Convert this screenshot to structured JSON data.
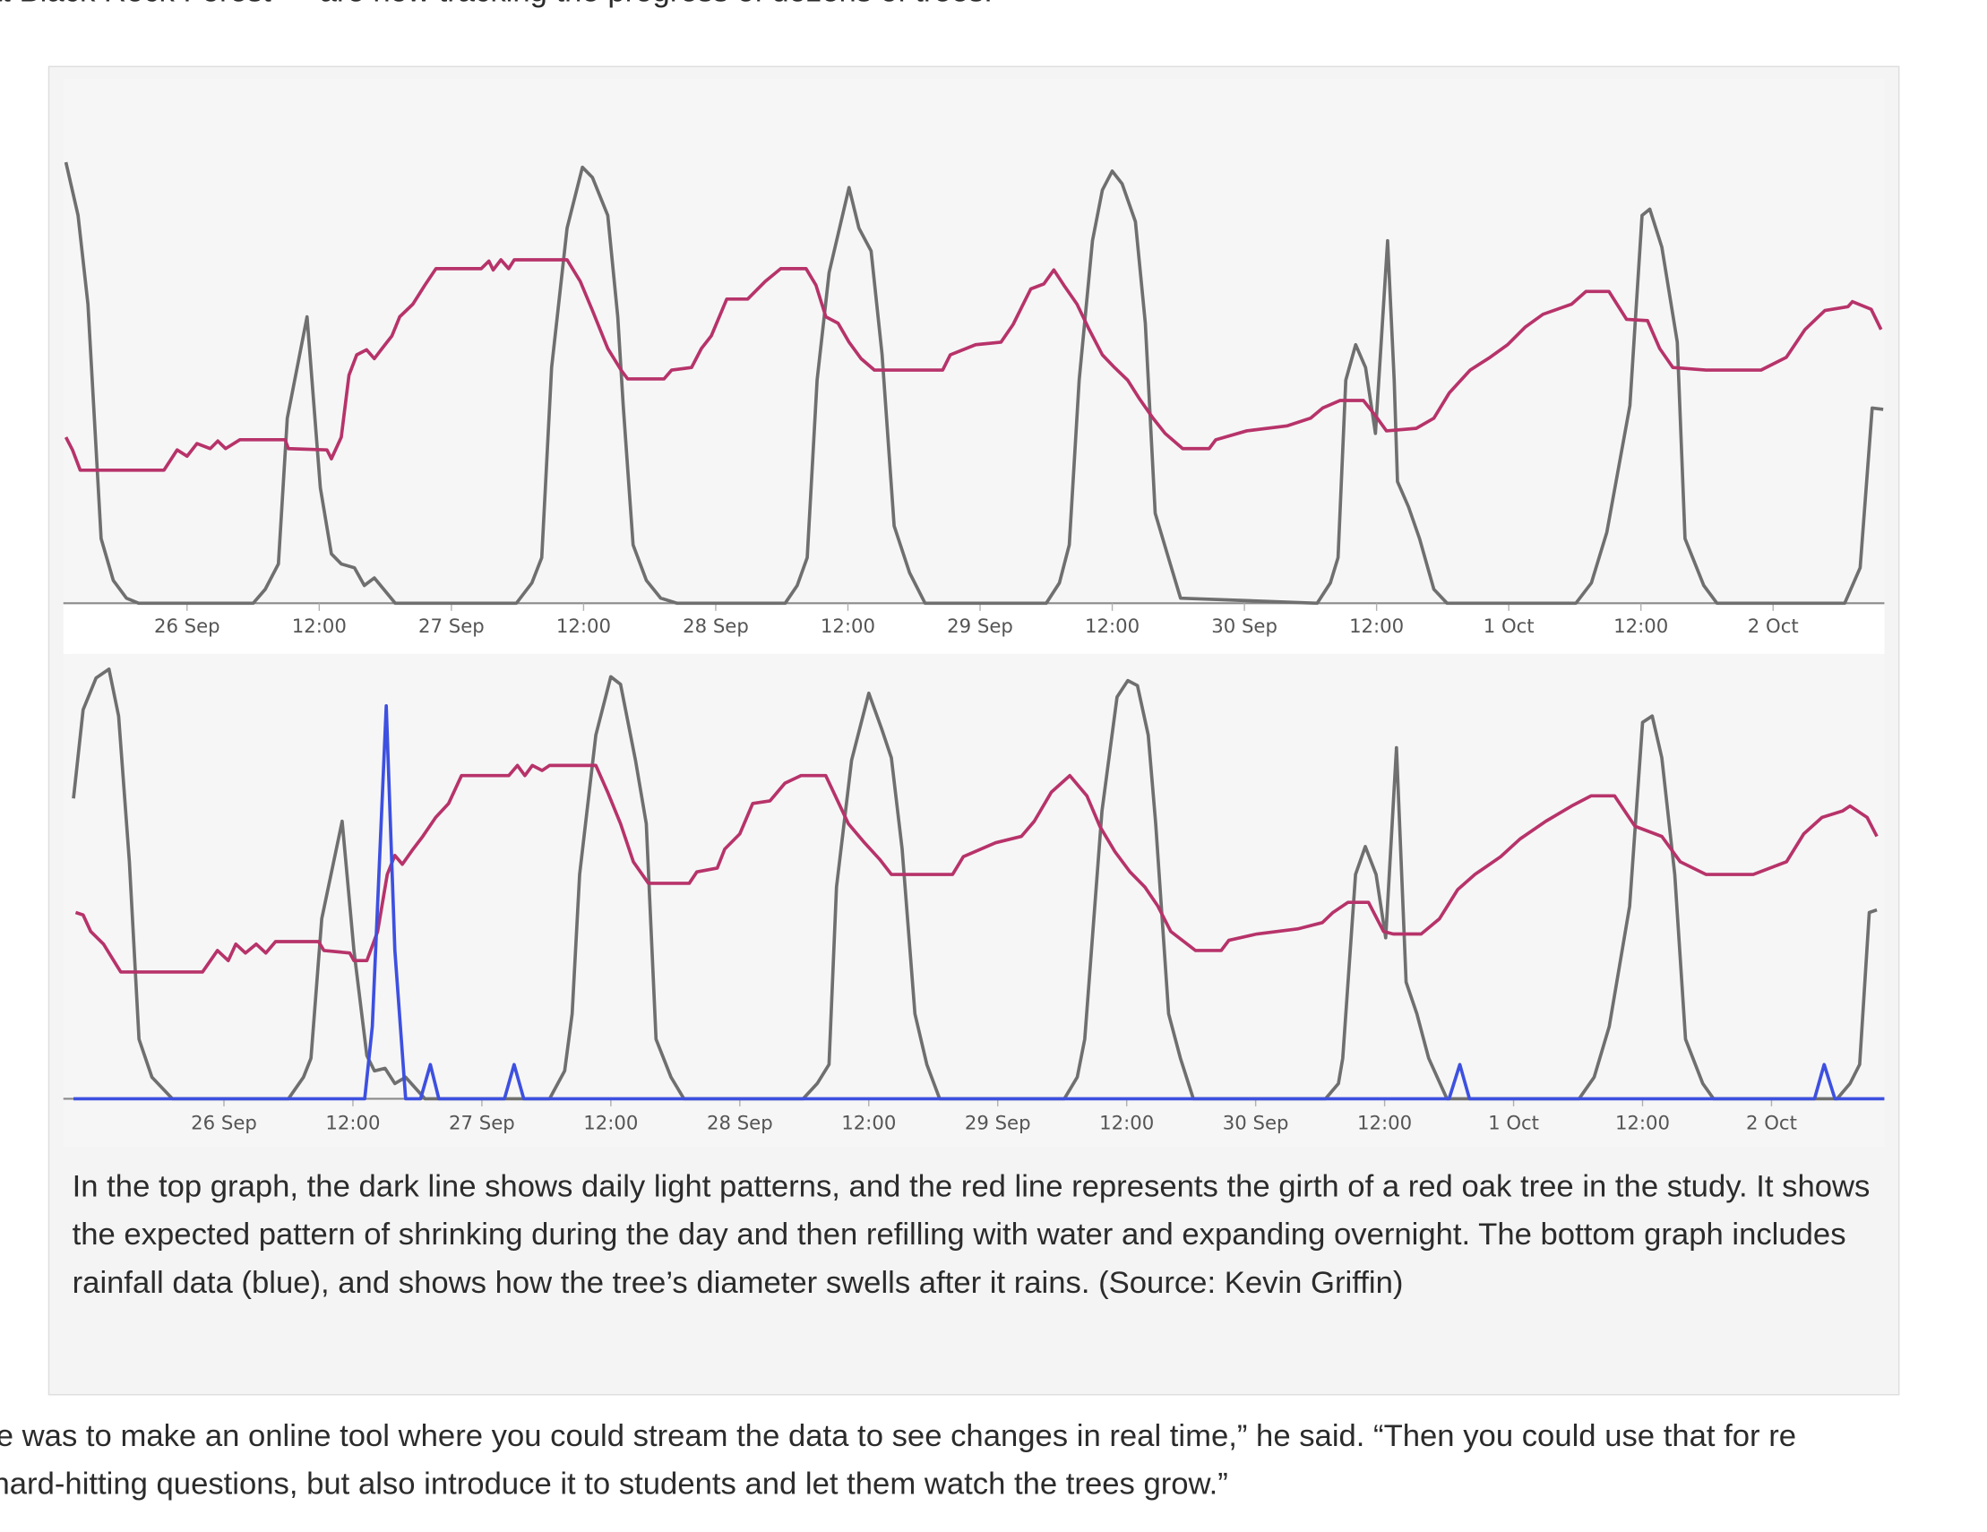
{
  "intro_text": "at Black Rock Forest — are now tracking the progress of dozens of trees.",
  "chart_data": [
    {
      "type": "line",
      "xlim": [
        -11,
        154.1
      ],
      "ylim": [
        0,
        416
      ],
      "xticks": [
        {
          "value": 0,
          "label": "26 Sep"
        },
        {
          "value": 12,
          "label": "12:00"
        },
        {
          "value": 24,
          "label": "27 Sep"
        },
        {
          "value": 36,
          "label": "12:00"
        },
        {
          "value": 48,
          "label": "28 Sep"
        },
        {
          "value": 60,
          "label": "12:00"
        },
        {
          "value": 72,
          "label": "29 Sep"
        },
        {
          "value": 84,
          "label": "12:00"
        },
        {
          "value": 96,
          "label": "30 Sep"
        },
        {
          "value": 108,
          "label": "12:00"
        },
        {
          "value": 120,
          "label": "1 Oct"
        },
        {
          "value": 132,
          "label": "12:00"
        },
        {
          "value": 144,
          "label": "2 Oct"
        }
      ],
      "series": [
        {
          "color": "#6f6f6f",
          "x": [
            -11,
            -9.9,
            -9,
            -7.8,
            -6.7,
            -5.5,
            -4.4,
            6,
            7.1,
            8.3,
            9.1,
            10.9,
            12.1,
            13.1,
            14,
            15.2,
            16.1,
            17,
            18.9,
            29.9,
            31.3,
            32.2,
            33.1,
            34.5,
            35.9,
            36.8,
            38.2,
            39.1,
            39.6,
            40.5,
            41.7,
            43,
            44.5,
            54.3,
            55.4,
            56.3,
            57.2,
            58.3,
            60.1,
            61,
            62.1,
            63.1,
            64.2,
            65.6,
            67,
            78,
            79.2,
            80.1,
            81,
            82.2,
            83.1,
            84,
            84.9,
            86.1,
            87,
            87.9,
            89.1,
            90.2,
            102.6,
            103.8,
            104.5,
            105.2,
            106.1,
            107,
            107.9,
            109,
            109.6,
            109.9,
            110.9,
            111.9,
            113.2,
            114.4,
            126.1,
            127.5,
            128.9,
            131,
            132.1,
            132.8,
            133.9,
            135.3,
            136,
            137.7,
            138.9,
            150.5,
            151.9,
            153,
            154
          ],
          "values": [
            348,
            306,
            236,
            51,
            18,
            4,
            0,
            0,
            11,
            31,
            146,
            226,
            91,
            39,
            31,
            28,
            14,
            20,
            0,
            0,
            16,
            36,
            186,
            296,
            344,
            336,
            306,
            226,
            156,
            46,
            18,
            4,
            0,
            0,
            14,
            36,
            176,
            261,
            328,
            296,
            278,
            196,
            61,
            24,
            0,
            0,
            16,
            46,
            176,
            286,
            326,
            341,
            331,
            301,
            221,
            71,
            36,
            4,
            0,
            16,
            36,
            176,
            204,
            186,
            134,
            286,
            176,
            96,
            76,
            51,
            11,
            0,
            0,
            16,
            56,
            156,
            306,
            311,
            281,
            206,
            51,
            14,
            0,
            0,
            28,
            154,
            153
          ]
        },
        {
          "color": "#b7336a",
          "x": [
            -11,
            -10.4,
            -9.7,
            -2.1,
            -0.9,
            0,
            0.9,
            2.1,
            2.8,
            3.5,
            4.8,
            8.9,
            9.2,
            12.7,
            13.1,
            14,
            14.7,
            15.4,
            16.3,
            17,
            17.7,
            18.6,
            19.3,
            20.5,
            21.6,
            22.6,
            26.7,
            27.4,
            27.8,
            28.5,
            29.2,
            29.7,
            34.5,
            35.7,
            36.8,
            38.2,
            39.4,
            40,
            43.3,
            44,
            45.8,
            46.7,
            47.6,
            49,
            50.9,
            52.5,
            53.9,
            56.2,
            57.1,
            58,
            59.1,
            60.1,
            61.2,
            62.4,
            68.6,
            69.3,
            71.6,
            73.9,
            75,
            76.6,
            77.8,
            78.7,
            79.6,
            80.8,
            81.9,
            83.1,
            84.2,
            85.4,
            86.5,
            87.7,
            88.8,
            90.4,
            92.8,
            93.4,
            96.2,
            99.9,
            102,
            103.1,
            104.7,
            106.8,
            107.9,
            108.9,
            111.6,
            113.2,
            114.6,
            116.5,
            118.3,
            119.9,
            121.5,
            123.1,
            125.7,
            127,
            129.1,
            130.7,
            132.6,
            133.7,
            134.9,
            137.9,
            142.9,
            145.2,
            146.9,
            148.7,
            150.8,
            151.2,
            152.9,
            153.8
          ],
          "values": [
            131,
            121,
            105,
            105,
            121,
            116,
            126,
            122,
            128,
            122,
            129,
            129,
            122,
            121,
            114,
            131,
            180,
            196,
            200,
            193,
            201,
            211,
            226,
            236,
            251,
            264,
            264,
            270,
            263,
            271,
            264,
            271,
            271,
            254,
            231,
            201,
            184,
            177,
            177,
            184,
            186,
            201,
            211,
            240,
            240,
            254,
            264,
            264,
            251,
            226,
            221,
            206,
            193,
            184,
            184,
            196,
            204,
            206,
            220,
            248,
            252,
            263,
            251,
            236,
            216,
            196,
            186,
            176,
            161,
            146,
            134,
            122,
            122,
            129,
            136,
            140,
            146,
            154,
            160,
            160,
            148,
            136,
            138,
            146,
            166,
            184,
            194,
            204,
            218,
            228,
            236,
            246,
            246,
            224,
            223,
            201,
            186,
            184,
            184,
            194,
            216,
            231,
            234,
            238,
            232,
            216
          ]
        }
      ]
    },
    {
      "type": "line",
      "xlim": [
        -14,
        154.5
      ],
      "ylim": [
        0,
        351
      ],
      "xticks": [
        {
          "value": 0,
          "label": "26 Sep"
        },
        {
          "value": 12,
          "label": "12:00"
        },
        {
          "value": 24,
          "label": "27 Sep"
        },
        {
          "value": 36,
          "label": "12:00"
        },
        {
          "value": 48,
          "label": "28 Sep"
        },
        {
          "value": 60,
          "label": "12:00"
        },
        {
          "value": 72,
          "label": "29 Sep"
        },
        {
          "value": 84,
          "label": "12:00"
        },
        {
          "value": 96,
          "label": "30 Sep"
        },
        {
          "value": 108,
          "label": "12:00"
        },
        {
          "value": 120,
          "label": "1 Oct"
        },
        {
          "value": 132,
          "label": "12:00"
        },
        {
          "value": 144,
          "label": "2 Oct"
        }
      ],
      "series": [
        {
          "color": "#6f6f6f",
          "x": [
            -14,
            -13.1,
            -11.9,
            -10.7,
            -9.8,
            -8.8,
            -7.9,
            -6.7,
            -4.8,
            6,
            7.4,
            8.1,
            9.1,
            11,
            12.1,
            13.3,
            14,
            15,
            15.9,
            16.9,
            18.7,
            30.3,
            31.7,
            32.4,
            33.1,
            34.6,
            36,
            36.9,
            38.3,
            39.3,
            40.2,
            41.6,
            42.8,
            53.9,
            55.2,
            56.3,
            57,
            58.4,
            60,
            61.2,
            62.1,
            63.1,
            64.3,
            65.4,
            66.6,
            78.2,
            79.4,
            80.1,
            81.7,
            83.1,
            84.1,
            85,
            86,
            86.7,
            87.9,
            89,
            90.2,
            102.5,
            103.7,
            104.1,
            105.3,
            106.2,
            107.2,
            108.1,
            109.1,
            110,
            111,
            112.1,
            113.8,
            126.1,
            127.5,
            128.9,
            130.8,
            132,
            132.9,
            133.8,
            135,
            136,
            137.6,
            138.6,
            150.1,
            151.3,
            152.2,
            153.1,
            153.8
          ],
          "values": [
            237,
            307,
            332,
            339,
            302,
            187,
            47,
            17,
            0,
            0,
            17,
            32,
            142,
            219,
            117,
            34,
            22,
            24,
            12,
            17,
            0,
            0,
            22,
            67,
            177,
            287,
            333,
            327,
            267,
            217,
            47,
            17,
            0,
            0,
            12,
            27,
            167,
            267,
            320,
            292,
            269,
            197,
            67,
            27,
            0,
            0,
            17,
            47,
            227,
            317,
            330,
            326,
            287,
            217,
            67,
            32,
            0,
            0,
            12,
            32,
            177,
            199,
            177,
            127,
            277,
            92,
            67,
            32,
            0,
            0,
            17,
            57,
            152,
            297,
            302,
            269,
            177,
            47,
            12,
            0,
            0,
            12,
            27,
            147,
            149
          ]
        },
        {
          "color": "#b7336a",
          "x": [
            -13.8,
            -13.1,
            -12.4,
            -11.2,
            -9.6,
            -2,
            -0.6,
            0.4,
            1.1,
            2,
            3,
            3.9,
            4.8,
            8.8,
            9.3,
            11.7,
            12.1,
            13.3,
            14.3,
            15.2,
            15.9,
            16.6,
            17.6,
            18.5,
            19.7,
            20.9,
            22.1,
            26.5,
            27.3,
            28,
            28.7,
            29.6,
            30.3,
            34.6,
            35.7,
            36.9,
            38.1,
            39.5,
            43.3,
            44,
            45.9,
            46.6,
            48,
            49.2,
            50.8,
            52.2,
            53.7,
            56,
            57,
            58.1,
            59.6,
            61,
            62.1,
            67.8,
            68.8,
            71.8,
            74.2,
            75.4,
            77,
            78.7,
            80.3,
            81.5,
            82.9,
            84.3,
            85.7,
            86.9,
            88.1,
            90.4,
            92.8,
            93.5,
            96.1,
            99.9,
            102.2,
            103.2,
            104.6,
            106.5,
            107.9,
            108.8,
            111.4,
            113.1,
            114.8,
            116.4,
            118.8,
            120.6,
            123,
            125.4,
            127.2,
            129.4,
            131.3,
            133.8,
            135.5,
            137.9,
            142.3,
            145.4,
            147,
            148.7,
            150.6,
            151.3,
            152.9,
            153.8
          ],
          "values": [
            147,
            145,
            132,
            122,
            100,
            100,
            117,
            109,
            122,
            115,
            122,
            115,
            124,
            124,
            117,
            115,
            109,
            109,
            132,
            177,
            192,
            185,
            197,
            207,
            222,
            233,
            255,
            255,
            263,
            255,
            263,
            259,
            263,
            263,
            242,
            217,
            187,
            170,
            170,
            179,
            182,
            197,
            209,
            233,
            235,
            249,
            255,
            255,
            237,
            217,
            202,
            189,
            177,
            177,
            191,
            202,
            207,
            219,
            242,
            255,
            239,
            215,
            195,
            179,
            167,
            152,
            132,
            117,
            117,
            125,
            130,
            134,
            139,
            147,
            155,
            155,
            132,
            130,
            130,
            142,
            165,
            177,
            191,
            205,
            219,
            231,
            239,
            239,
            215,
            207,
            187,
            177,
            177,
            187,
            209,
            222,
            227,
            231,
            222,
            207
          ]
        },
        {
          "color": "#3d50e0",
          "x": [
            -14,
            13.1,
            13.8,
            15.1,
            15.9,
            16.9,
            18.3,
            19.2,
            20,
            26.1,
            27,
            27.9,
            114,
            115,
            115.9,
            148,
            148.9,
            149.9,
            154.5
          ],
          "values": [
            0,
            0,
            57,
            310,
            117,
            0,
            0,
            27,
            0,
            0,
            27,
            0,
            0,
            27,
            0,
            0,
            27,
            0,
            0
          ]
        }
      ]
    }
  ],
  "caption": "In the top graph, the dark line shows daily light patterns, and the red line represents the girth of a red oak tree in the study. It shows the expected pattern of shrinking during the day and then refilling with water and expanding overnight. The bottom graph includes rainfall data (blue), and shows how the tree’s diameter swells after it rains. (Source: Kevin Griffin)",
  "body_text": [
    "e was to make an online tool where you could stream the data to see changes in real time,” he said. “Then you could use that for re",
    "hard-hitting questions, but also introduce it to students and let them watch the trees grow.”"
  ]
}
